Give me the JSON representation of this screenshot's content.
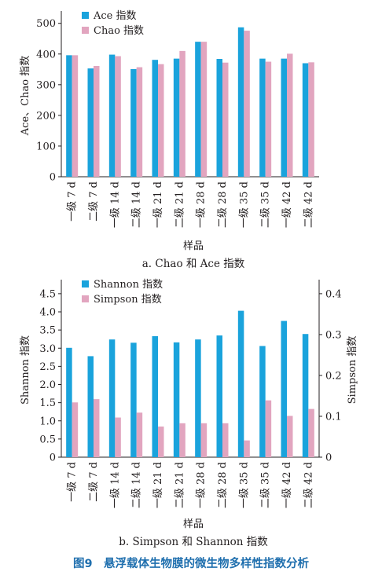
{
  "colors": {
    "blue": "#1aa3dc",
    "pink": "#e2a5bf",
    "figure_title": "#1f6fae"
  },
  "figure_title": "图9　悬浮载体生物膜的微生物多样性指数分析",
  "chart_data": [
    {
      "type": "bar",
      "caption": "a. Chao 和 Ace 指数",
      "categories": [
        "一级 7 d",
        "二级 7 d",
        "一级 14 d",
        "二级 14 d",
        "一级 21 d",
        "二级 21 d",
        "一级 28 d",
        "二级 28 d",
        "一级 35 d",
        "二级 35 d",
        "一级 42 d",
        "二级 42 d"
      ],
      "series": [
        {
          "name": "Ace 指数",
          "color": "#1aa3dc",
          "values": [
            396,
            353,
            398,
            351,
            381,
            385,
            440,
            384,
            487,
            385,
            385,
            370
          ]
        },
        {
          "name": "Chao 指数",
          "color": "#e2a5bf",
          "values": [
            396,
            361,
            393,
            357,
            367,
            410,
            440,
            372,
            476,
            375,
            401,
            373
          ]
        }
      ],
      "xlabel": "样品",
      "ylabel": "Ace、Chao 指数",
      "ylim": [
        0,
        530
      ],
      "yticks": [
        0,
        100,
        200,
        300,
        400,
        500
      ],
      "legend_position": "top-left",
      "grid": false
    },
    {
      "type": "bar",
      "caption": "b. Simpson 和 Shannon 指数",
      "categories": [
        "一级 7 d",
        "二级 7 d",
        "一级 14 d",
        "二级 14 d",
        "一级 21 d",
        "二级 21 d",
        "一级 28 d",
        "二级 28 d",
        "一级 35 d",
        "二级 35 d",
        "一级 42 d",
        "二级 42 d"
      ],
      "series": [
        {
          "name": "Shannon 指数",
          "color": "#1aa3dc",
          "axis": "left",
          "values": [
            3.01,
            2.78,
            3.24,
            3.15,
            3.33,
            3.16,
            3.24,
            3.35,
            4.03,
            3.06,
            3.75,
            3.39
          ]
        },
        {
          "name": "Simpson 指数",
          "color": "#e2a5bf",
          "axis": "right",
          "values": [
            0.134,
            0.142,
            0.097,
            0.109,
            0.075,
            0.083,
            0.083,
            0.083,
            0.041,
            0.139,
            0.101,
            0.118
          ]
        }
      ],
      "xlabel": "样品",
      "ylabel": "Shannon 指数",
      "ylabel_right": "Simpson 指数",
      "ylim": [
        0,
        4.8
      ],
      "ylim_right": [
        0,
        0.4267
      ],
      "yticks": [
        "0",
        "0.5",
        "1.0",
        "1.5",
        "2.0",
        "2.5",
        "3.0",
        "3.5",
        "4.0",
        "4.5"
      ],
      "yticks_right": [
        "0",
        "0.1",
        "0.2",
        "0.3",
        "0.4"
      ],
      "legend_position": "top-left",
      "grid": false
    }
  ]
}
